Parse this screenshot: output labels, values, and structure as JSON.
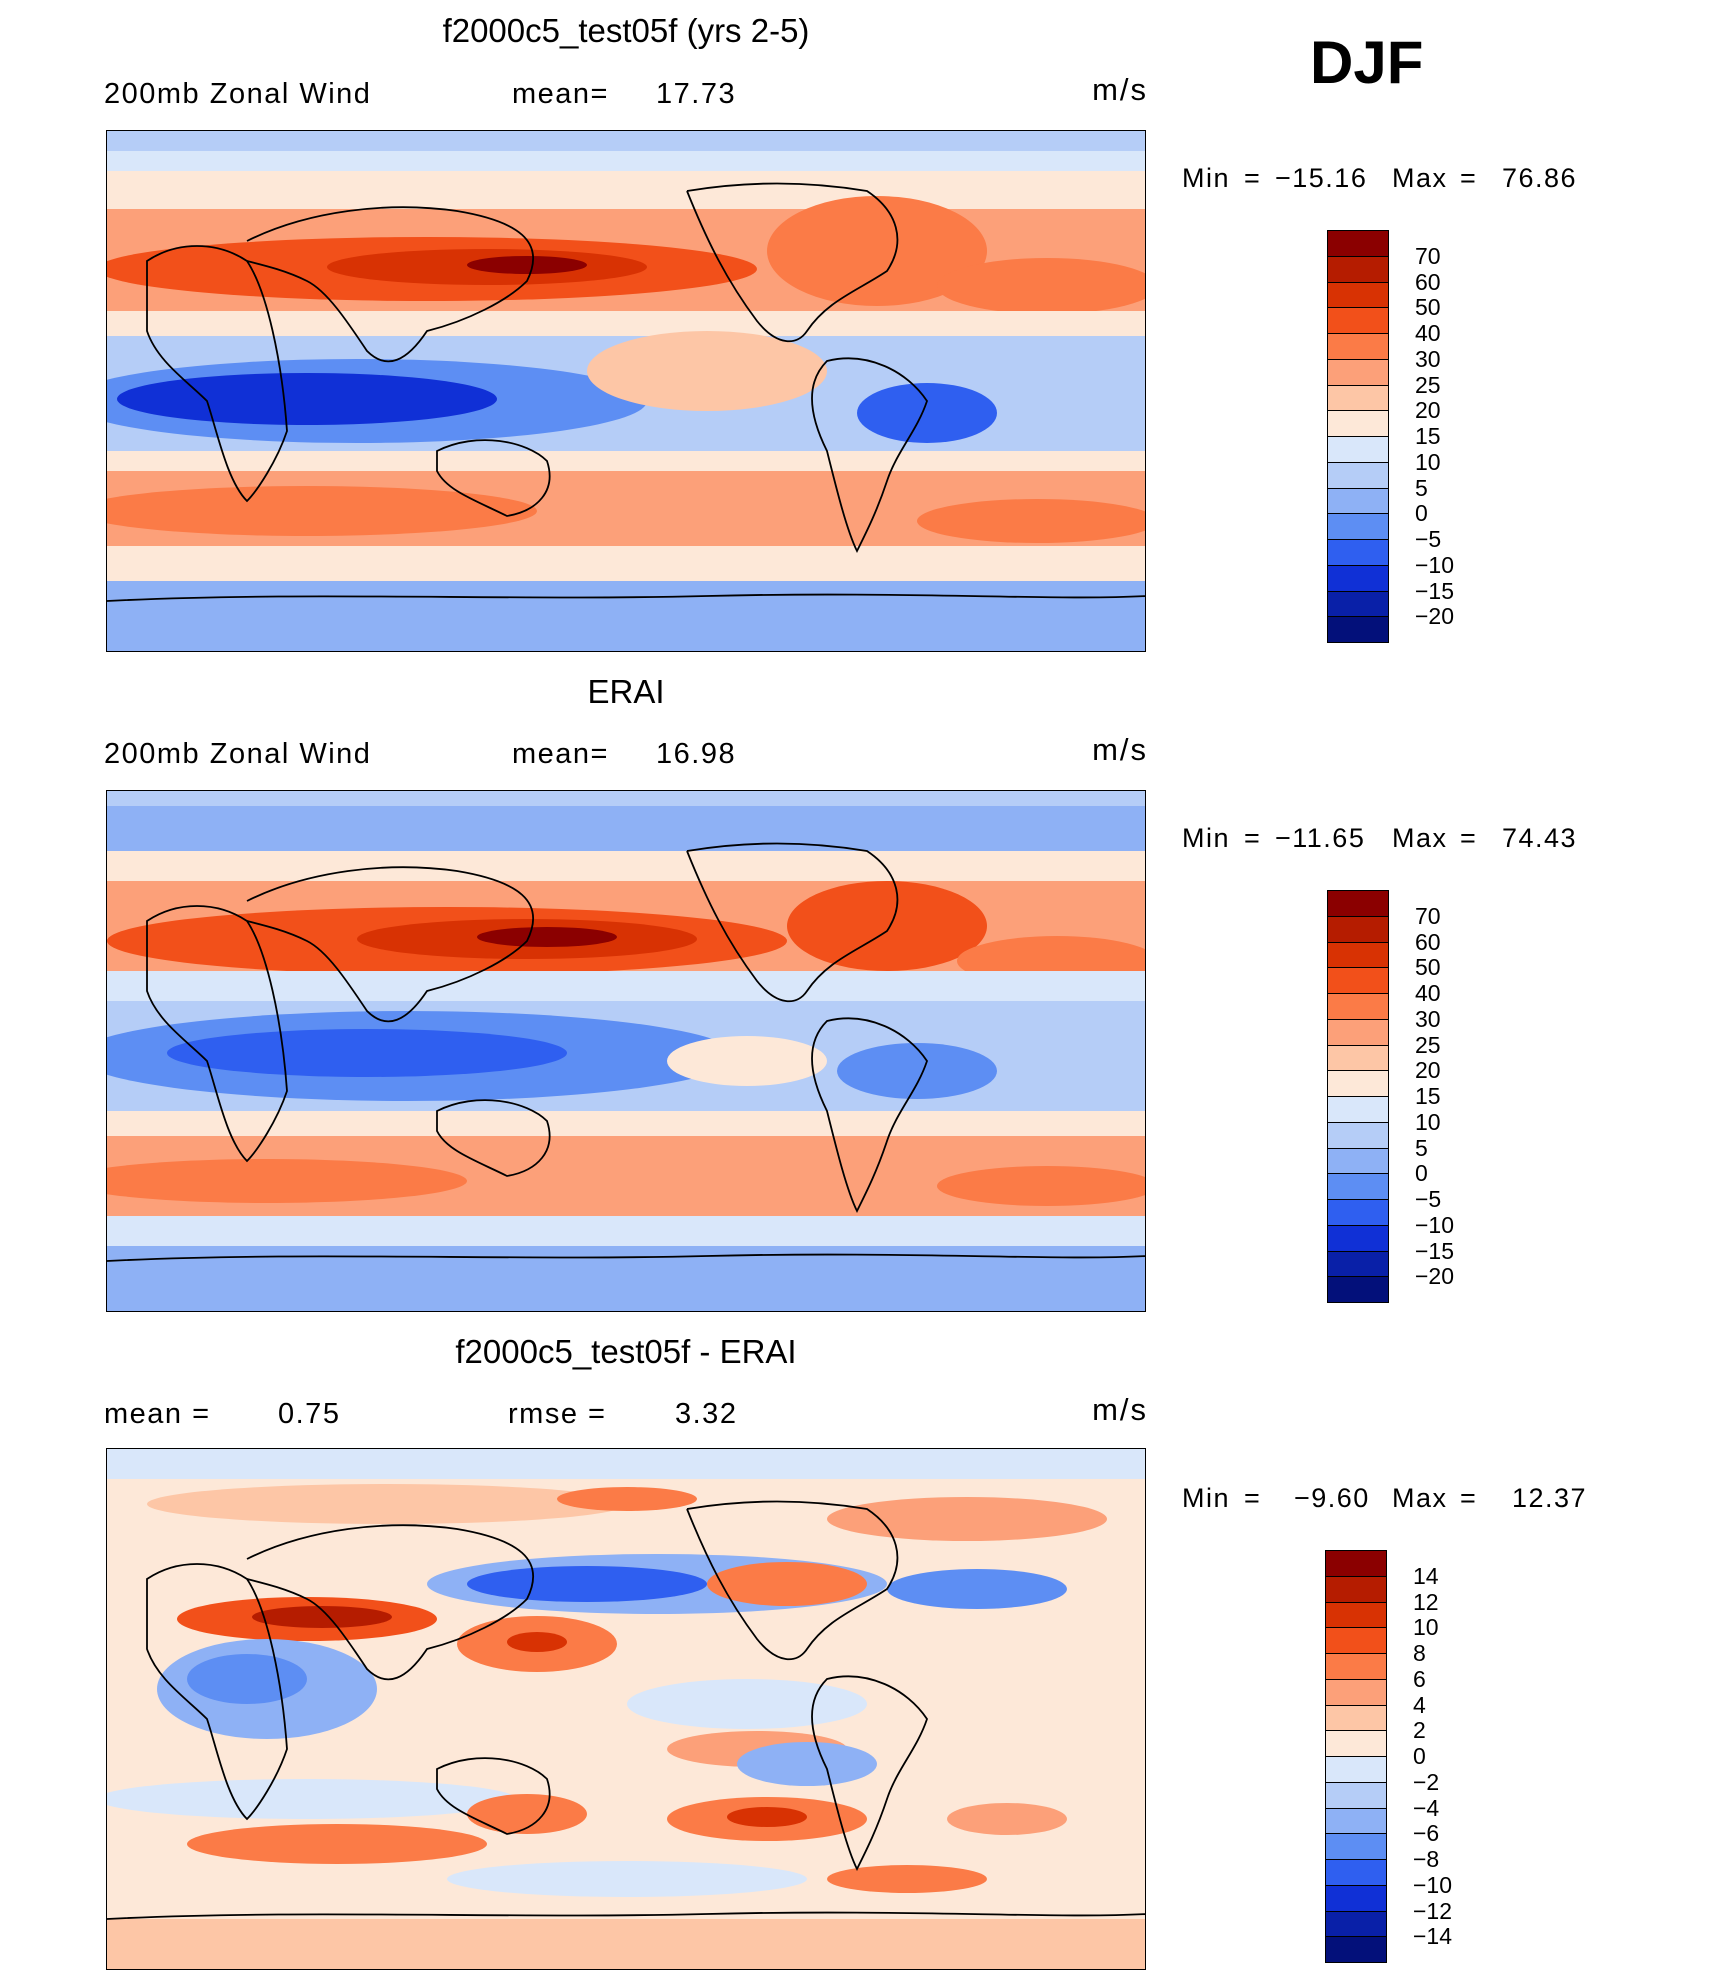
{
  "season": "DJF",
  "panels": [
    {
      "title": "f2000c5_test05f (yrs 2-5)",
      "left_label": "200mb Zonal Wind",
      "stat1_label": "mean=",
      "stat1_value": "17.73",
      "stat2_label": "",
      "stat2_value": "",
      "units": "m/s",
      "min_label": "Min",
      "min_value": "−15.16",
      "max_label": "Max",
      "max_value": "76.86",
      "colorbar_labels": [
        "70",
        "60",
        "50",
        "40",
        "30",
        "25",
        "20",
        "15",
        "10",
        "5",
        "0",
        "−5",
        "−10",
        "−15",
        "−20"
      ],
      "colorbar_colors": [
        "#8b0000",
        "#b51c00",
        "#d83203",
        "#f2501a",
        "#fb7b47",
        "#fca079",
        "#fdc6a6",
        "#fde8d8",
        "#d9e7fa",
        "#b5cdf7",
        "#8eb1f5",
        "#5d8ef3",
        "#2f5ff0",
        "#1030d6",
        "#0920a8",
        "#03107a"
      ]
    },
    {
      "title": "ERAI",
      "left_label": "200mb Zonal Wind",
      "stat1_label": "mean=",
      "stat1_value": "16.98",
      "stat2_label": "",
      "stat2_value": "",
      "units": "m/s",
      "min_label": "Min",
      "min_value": "−11.65",
      "max_label": "Max",
      "max_value": "74.43",
      "colorbar_labels": [
        "70",
        "60",
        "50",
        "40",
        "30",
        "25",
        "20",
        "15",
        "10",
        "5",
        "0",
        "−5",
        "−10",
        "−15",
        "−20"
      ],
      "colorbar_colors": [
        "#8b0000",
        "#b51c00",
        "#d83203",
        "#f2501a",
        "#fb7b47",
        "#fca079",
        "#fdc6a6",
        "#fde8d8",
        "#d9e7fa",
        "#b5cdf7",
        "#8eb1f5",
        "#5d8ef3",
        "#2f5ff0",
        "#1030d6",
        "#0920a8",
        "#03107a"
      ]
    },
    {
      "title": "f2000c5_test05f - ERAI",
      "left_label": "",
      "stat1_label": "mean =",
      "stat1_value": "0.75",
      "stat2_label": "rmse =",
      "stat2_value": "3.32",
      "units": "m/s",
      "min_label": "Min",
      "min_value": "−9.60",
      "max_label": "Max",
      "max_value": "12.37",
      "colorbar_labels": [
        "14",
        "12",
        "10",
        "8",
        "6",
        "4",
        "2",
        "0",
        "−2",
        "−4",
        "−6",
        "−8",
        "−10",
        "−12",
        "−14"
      ],
      "colorbar_colors": [
        "#8b0000",
        "#b51c00",
        "#d83203",
        "#f2501a",
        "#fb7b47",
        "#fca079",
        "#fdc6a6",
        "#fde8d8",
        "#d9e7fa",
        "#b5cdf7",
        "#8eb1f5",
        "#5d8ef3",
        "#2f5ff0",
        "#1030d6",
        "#0920a8",
        "#03107a"
      ]
    }
  ]
}
